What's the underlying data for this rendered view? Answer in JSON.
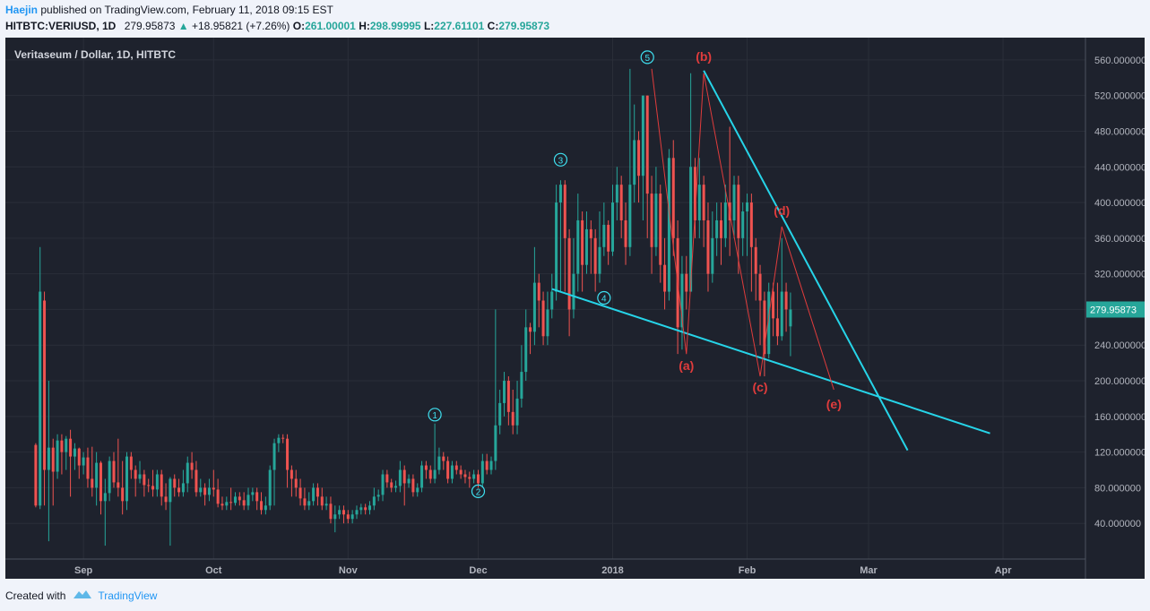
{
  "header": {
    "author": "Haejin",
    "published_text": " published on TradingView.com, February 11, 2018 09:15 EST",
    "symbol": "HITBTC:VERIUSD, 1D",
    "last": "279.95873",
    "change_arrow": "▲",
    "change": "+18.95821 (+7.26%)",
    "open_label": "O:",
    "open": "261.00001",
    "high_label": "H:",
    "high": "298.99995",
    "low_label": "L:",
    "low": "227.61101",
    "close_label": "C:",
    "close": "279.95873"
  },
  "footer": {
    "created_with": "Created with",
    "brand": "TradingView"
  },
  "colors": {
    "background": "#1e222d",
    "up": "#26a69a",
    "down": "#ef5350",
    "trendline": "#26d4e8",
    "wave_red": "#e03c3c",
    "wave_cyan": "#3fe0f0"
  },
  "chart_data": {
    "type": "candlestick",
    "title": "Veritaseum / Dollar, 1D, HITBTC",
    "price_label": "279.95873",
    "ylim": [
      0,
      585
    ],
    "y_ticks": [
      40,
      80,
      120,
      160,
      200,
      240,
      280,
      320,
      360,
      400,
      440,
      480,
      520,
      560
    ],
    "y_tick_labels": [
      "40.000000",
      "80.000000",
      "120.000000",
      "160.000000",
      "200.000000",
      "240.000000",
      "280.000000",
      "320.000000",
      "360.000000",
      "400.000000",
      "440.000000",
      "480.000000",
      "520.000000",
      "560.000000"
    ],
    "x_start": "2017-08-14",
    "x_end": "2018-04-20",
    "x_ticks": [
      {
        "date": "2017-09-01",
        "label": "Sep"
      },
      {
        "date": "2017-10-01",
        "label": "Oct"
      },
      {
        "date": "2017-11-01",
        "label": "Nov"
      },
      {
        "date": "2017-12-01",
        "label": "Dec"
      },
      {
        "date": "2018-01-01",
        "label": "2018"
      },
      {
        "date": "2018-02-01",
        "label": "Feb"
      },
      {
        "date": "2018-03-01",
        "label": "Mar"
      },
      {
        "date": "2018-04-01",
        "label": "Apr"
      }
    ],
    "candles": [
      [
        "2017-08-21",
        128,
        60,
        130,
        58
      ],
      [
        "2017-08-22",
        60,
        300,
        350,
        56
      ],
      [
        "2017-08-23",
        290,
        100,
        300,
        60
      ],
      [
        "2017-08-24",
        100,
        125,
        200,
        20
      ],
      [
        "2017-08-25",
        125,
        98,
        135,
        60
      ],
      [
        "2017-08-26",
        98,
        133,
        140,
        90
      ],
      [
        "2017-08-27",
        133,
        120,
        140,
        95
      ],
      [
        "2017-08-28",
        120,
        135,
        138,
        100
      ],
      [
        "2017-08-29",
        135,
        115,
        145,
        70
      ],
      [
        "2017-08-30",
        115,
        124,
        130,
        100
      ],
      [
        "2017-08-31",
        124,
        105,
        125,
        90
      ],
      [
        "2017-09-01",
        105,
        114,
        120,
        95
      ],
      [
        "2017-09-02",
        114,
        90,
        125,
        80
      ],
      [
        "2017-09-03",
        90,
        80,
        126,
        70
      ],
      [
        "2017-09-04",
        80,
        108,
        120,
        60
      ],
      [
        "2017-09-05",
        108,
        65,
        110,
        50
      ],
      [
        "2017-09-06",
        65,
        74,
        90,
        15
      ],
      [
        "2017-09-07",
        74,
        110,
        115,
        65
      ],
      [
        "2017-09-08",
        110,
        86,
        120,
        80
      ],
      [
        "2017-09-09",
        86,
        80,
        135,
        70
      ],
      [
        "2017-09-10",
        80,
        65,
        110,
        50
      ],
      [
        "2017-09-11",
        65,
        115,
        120,
        55
      ],
      [
        "2017-09-12",
        115,
        100,
        120,
        90
      ],
      [
        "2017-09-13",
        100,
        90,
        105,
        70
      ],
      [
        "2017-09-14",
        90,
        95,
        110,
        85
      ],
      [
        "2017-09-15",
        95,
        83,
        100,
        70
      ],
      [
        "2017-09-16",
        83,
        82,
        90,
        75
      ],
      [
        "2017-09-17",
        82,
        78,
        100,
        70
      ],
      [
        "2017-09-18",
        78,
        95,
        100,
        70
      ],
      [
        "2017-09-19",
        95,
        70,
        100,
        60
      ],
      [
        "2017-09-20",
        70,
        64,
        85,
        55
      ],
      [
        "2017-09-21",
        64,
        90,
        92,
        15
      ],
      [
        "2017-09-22",
        90,
        80,
        95,
        70
      ],
      [
        "2017-09-23",
        80,
        75,
        90,
        70
      ],
      [
        "2017-09-24",
        75,
        85,
        100,
        70
      ],
      [
        "2017-09-25",
        85,
        108,
        115,
        75
      ],
      [
        "2017-09-26",
        108,
        100,
        120,
        90
      ],
      [
        "2017-09-27",
        100,
        75,
        110,
        70
      ],
      [
        "2017-09-28",
        75,
        80,
        90,
        70
      ],
      [
        "2017-09-29",
        80,
        72,
        85,
        60
      ],
      [
        "2017-09-30",
        72,
        80,
        90,
        65
      ],
      [
        "2017-10-01",
        80,
        78,
        100,
        70
      ],
      [
        "2017-10-02",
        78,
        62,
        90,
        58
      ],
      [
        "2017-10-03",
        62,
        60,
        70,
        55
      ],
      [
        "2017-10-04",
        60,
        64,
        70,
        55
      ],
      [
        "2017-10-05",
        64,
        63,
        80,
        55
      ],
      [
        "2017-10-06",
        63,
        70,
        75,
        60
      ],
      [
        "2017-10-07",
        70,
        66,
        75,
        60
      ],
      [
        "2017-10-08",
        66,
        60,
        75,
        55
      ],
      [
        "2017-10-09",
        60,
        72,
        80,
        55
      ],
      [
        "2017-10-10",
        72,
        75,
        80,
        65
      ],
      [
        "2017-10-11",
        75,
        65,
        80,
        55
      ],
      [
        "2017-10-12",
        65,
        55,
        75,
        50
      ],
      [
        "2017-10-13",
        55,
        60,
        70,
        50
      ],
      [
        "2017-10-14",
        60,
        100,
        105,
        55
      ],
      [
        "2017-10-15",
        100,
        130,
        135,
        60
      ],
      [
        "2017-10-16",
        130,
        136,
        140,
        120
      ],
      [
        "2017-10-17",
        136,
        135,
        140,
        130
      ],
      [
        "2017-10-18",
        135,
        100,
        140,
        80
      ],
      [
        "2017-10-19",
        100,
        90,
        105,
        70
      ],
      [
        "2017-10-20",
        90,
        80,
        100,
        70
      ],
      [
        "2017-10-21",
        80,
        68,
        90,
        60
      ],
      [
        "2017-10-22",
        68,
        60,
        80,
        55
      ],
      [
        "2017-10-23",
        60,
        65,
        75,
        55
      ],
      [
        "2017-10-24",
        65,
        80,
        85,
        60
      ],
      [
        "2017-10-25",
        80,
        70,
        85,
        60
      ],
      [
        "2017-10-26",
        70,
        60,
        80,
        55
      ],
      [
        "2017-10-27",
        60,
        62,
        70,
        55
      ],
      [
        "2017-10-28",
        62,
        45,
        70,
        40
      ],
      [
        "2017-10-29",
        45,
        50,
        60,
        30
      ],
      [
        "2017-10-30",
        50,
        55,
        60,
        45
      ],
      [
        "2017-10-31",
        55,
        50,
        60,
        40
      ],
      [
        "2017-11-01",
        50,
        45,
        55,
        40
      ],
      [
        "2017-11-02",
        45,
        50,
        55,
        40
      ],
      [
        "2017-11-03",
        50,
        55,
        60,
        45
      ],
      [
        "2017-11-04",
        55,
        58,
        62,
        50
      ],
      [
        "2017-11-05",
        58,
        55,
        62,
        50
      ],
      [
        "2017-11-06",
        55,
        60,
        65,
        50
      ],
      [
        "2017-11-07",
        60,
        70,
        80,
        55
      ],
      [
        "2017-11-08",
        70,
        72,
        78,
        65
      ],
      [
        "2017-11-09",
        72,
        95,
        100,
        65
      ],
      [
        "2017-11-10",
        95,
        86,
        100,
        80
      ],
      [
        "2017-11-11",
        86,
        80,
        90,
        75
      ],
      [
        "2017-11-12",
        80,
        82,
        88,
        75
      ],
      [
        "2017-11-13",
        82,
        100,
        110,
        75
      ],
      [
        "2017-11-14",
        100,
        85,
        105,
        60
      ],
      [
        "2017-11-15",
        85,
        90,
        95,
        80
      ],
      [
        "2017-11-16",
        90,
        75,
        95,
        70
      ],
      [
        "2017-11-17",
        75,
        80,
        85,
        70
      ],
      [
        "2017-11-18",
        80,
        105,
        110,
        75
      ],
      [
        "2017-11-19",
        105,
        100,
        110,
        90
      ],
      [
        "2017-11-20",
        100,
        90,
        105,
        85
      ],
      [
        "2017-11-21",
        90,
        100,
        152,
        85
      ],
      [
        "2017-11-22",
        100,
        115,
        125,
        95
      ],
      [
        "2017-11-23",
        115,
        110,
        120,
        100
      ],
      [
        "2017-11-24",
        110,
        90,
        115,
        85
      ],
      [
        "2017-11-25",
        90,
        105,
        110,
        85
      ],
      [
        "2017-11-26",
        105,
        100,
        110,
        95
      ],
      [
        "2017-11-27",
        100,
        95,
        105,
        90
      ],
      [
        "2017-11-28",
        95,
        92,
        100,
        85
      ],
      [
        "2017-11-29",
        92,
        90,
        98,
        80
      ],
      [
        "2017-11-30",
        90,
        95,
        100,
        85
      ],
      [
        "2017-12-01",
        95,
        85,
        100,
        80
      ],
      [
        "2017-12-02",
        85,
        110,
        118,
        80
      ],
      [
        "2017-12-03",
        110,
        100,
        118,
        95
      ],
      [
        "2017-12-04",
        100,
        110,
        115,
        95
      ],
      [
        "2017-12-05",
        110,
        150,
        280,
        100
      ],
      [
        "2017-12-06",
        150,
        175,
        190,
        140
      ],
      [
        "2017-12-07",
        175,
        200,
        210,
        160
      ],
      [
        "2017-12-08",
        200,
        165,
        205,
        150
      ],
      [
        "2017-12-09",
        165,
        150,
        190,
        140
      ],
      [
        "2017-12-10",
        150,
        180,
        200,
        140
      ],
      [
        "2017-12-11",
        180,
        210,
        240,
        170
      ],
      [
        "2017-12-12",
        210,
        260,
        280,
        200
      ],
      [
        "2017-12-13",
        260,
        255,
        265,
        230
      ],
      [
        "2017-12-14",
        255,
        310,
        350,
        240
      ],
      [
        "2017-12-15",
        310,
        290,
        320,
        260
      ],
      [
        "2017-12-16",
        290,
        250,
        300,
        240
      ],
      [
        "2017-12-17",
        250,
        280,
        300,
        240
      ],
      [
        "2017-12-18",
        280,
        300,
        320,
        270
      ],
      [
        "2017-12-19",
        300,
        400,
        420,
        290
      ],
      [
        "2017-12-20",
        400,
        420,
        425,
        300
      ],
      [
        "2017-12-21",
        420,
        360,
        425,
        300
      ],
      [
        "2017-12-22",
        360,
        280,
        370,
        250
      ],
      [
        "2017-12-23",
        280,
        320,
        360,
        270
      ],
      [
        "2017-12-24",
        320,
        380,
        410,
        300
      ],
      [
        "2017-12-25",
        380,
        330,
        390,
        300
      ],
      [
        "2017-12-26",
        330,
        370,
        390,
        320
      ],
      [
        "2017-12-27",
        370,
        360,
        380,
        320
      ],
      [
        "2017-12-28",
        360,
        320,
        370,
        300
      ],
      [
        "2017-12-29",
        320,
        350,
        390,
        310
      ],
      [
        "2017-12-30",
        350,
        375,
        400,
        340
      ],
      [
        "2017-12-31",
        375,
        345,
        380,
        330
      ],
      [
        "2018-01-01",
        345,
        400,
        420,
        340
      ],
      [
        "2018-01-02",
        400,
        420,
        440,
        380
      ],
      [
        "2018-01-03",
        420,
        380,
        430,
        360
      ],
      [
        "2018-01-04",
        380,
        350,
        400,
        330
      ],
      [
        "2018-01-05",
        350,
        420,
        550,
        340
      ],
      [
        "2018-01-06",
        420,
        470,
        510,
        400
      ],
      [
        "2018-01-07",
        470,
        430,
        480,
        400
      ],
      [
        "2018-01-08",
        430,
        520,
        520,
        380
      ],
      [
        "2018-01-09",
        520,
        410,
        520,
        360
      ],
      [
        "2018-01-10",
        410,
        350,
        430,
        320
      ],
      [
        "2018-01-11",
        350,
        410,
        440,
        340
      ],
      [
        "2018-01-12",
        410,
        330,
        420,
        310
      ],
      [
        "2018-01-13",
        330,
        300,
        360,
        280
      ],
      [
        "2018-01-14",
        300,
        450,
        460,
        290
      ],
      [
        "2018-01-15",
        450,
        360,
        470,
        340
      ],
      [
        "2018-01-16",
        360,
        260,
        380,
        230
      ],
      [
        "2018-01-17",
        260,
        320,
        340,
        235
      ],
      [
        "2018-01-18",
        320,
        300,
        340,
        280
      ],
      [
        "2018-01-19",
        300,
        440,
        545,
        300
      ],
      [
        "2018-01-20",
        440,
        380,
        450,
        360
      ],
      [
        "2018-01-21",
        380,
        420,
        450,
        360
      ],
      [
        "2018-01-22",
        420,
        380,
        430,
        350
      ],
      [
        "2018-01-23",
        380,
        320,
        400,
        300
      ],
      [
        "2018-01-24",
        320,
        360,
        390,
        310
      ],
      [
        "2018-01-25",
        360,
        380,
        400,
        340
      ],
      [
        "2018-01-26",
        380,
        360,
        400,
        330
      ],
      [
        "2018-01-27",
        360,
        400,
        420,
        350
      ],
      [
        "2018-01-28",
        400,
        380,
        485,
        340
      ],
      [
        "2018-01-29",
        380,
        420,
        430,
        360
      ],
      [
        "2018-01-30",
        420,
        360,
        430,
        320
      ],
      [
        "2018-01-31",
        360,
        390,
        400,
        340
      ],
      [
        "2018-02-01",
        390,
        400,
        410,
        340
      ],
      [
        "2018-02-02",
        400,
        350,
        410,
        300
      ],
      [
        "2018-02-03",
        350,
        320,
        360,
        290
      ],
      [
        "2018-02-04",
        320,
        290,
        330,
        240
      ],
      [
        "2018-02-05",
        290,
        230,
        300,
        205
      ],
      [
        "2018-02-06",
        230,
        300,
        310,
        225
      ],
      [
        "2018-02-07",
        300,
        270,
        310,
        250
      ],
      [
        "2018-02-08",
        270,
        250,
        310,
        240
      ],
      [
        "2018-02-09",
        250,
        300,
        360,
        245
      ],
      [
        "2018-02-10",
        300,
        280,
        310,
        255
      ],
      [
        "2018-02-11",
        261,
        279.95873,
        298.99995,
        227.61101
      ]
    ],
    "trendlines": [
      {
        "name": "upper",
        "from": {
          "date": "2018-01-22",
          "price": 548
        },
        "to": {
          "date": "2018-03-10",
          "price": 122
        }
      },
      {
        "name": "lower",
        "from": {
          "date": "2017-12-18",
          "price": 303
        },
        "to": {
          "date": "2018-03-29",
          "price": 141
        }
      }
    ],
    "wave_path_red": [
      {
        "date": "2018-01-10",
        "price": 550
      },
      {
        "date": "2018-01-18",
        "price": 230
      },
      {
        "date": "2018-01-22",
        "price": 545
      },
      {
        "date": "2018-02-04",
        "price": 205
      },
      {
        "date": "2018-02-09",
        "price": 373
      },
      {
        "date": "2018-02-21",
        "price": 190
      }
    ],
    "wave_labels_red": [
      {
        "text": "(b)",
        "date": "2018-01-22",
        "price": 559
      },
      {
        "text": "(a)",
        "date": "2018-01-18",
        "price": 212
      },
      {
        "text": "(c)",
        "date": "2018-02-04",
        "price": 188
      },
      {
        "text": "(d)",
        "date": "2018-02-09",
        "price": 386
      },
      {
        "text": "(e)",
        "date": "2018-02-21",
        "price": 169
      }
    ],
    "wave_labels_cyan": [
      {
        "text": "1",
        "date": "2017-11-21",
        "price": 162
      },
      {
        "text": "2",
        "date": "2017-12-01",
        "price": 76
      },
      {
        "text": "3",
        "date": "2017-12-20",
        "price": 448
      },
      {
        "text": "4",
        "date": "2017-12-30",
        "price": 293
      },
      {
        "text": "5",
        "date": "2018-01-09",
        "price": 563
      }
    ]
  }
}
